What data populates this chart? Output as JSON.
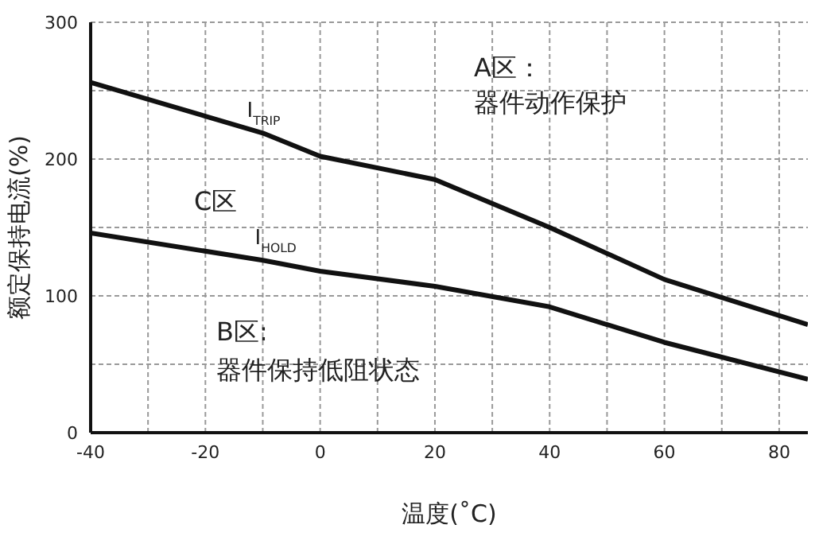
{
  "chart_data": {
    "type": "line",
    "xlabel": "温度(˚C)",
    "ylabel": "额定保持电流(%)",
    "x": [
      -40,
      -10,
      0,
      20,
      40,
      60,
      85
    ],
    "series": [
      {
        "name": "I$_{TRIP}$",
        "color": "#111111",
        "values": [
          256,
          219,
          202,
          185,
          150,
          112,
          79
        ]
      },
      {
        "name": "I$_{HOLD}$",
        "color": "#111111",
        "values": [
          146,
          126,
          118,
          107,
          92,
          66,
          39
        ]
      }
    ],
    "xlim": [
      -40,
      85
    ],
    "xticks": [
      -40,
      {
        "value": -30,
        "label": null
      },
      -20,
      {
        "value": -10,
        "label": null
      },
      0,
      {
        "value": 10,
        "label": null
      },
      20,
      {
        "value": 30,
        "label": null
      },
      40,
      {
        "value": 50,
        "label": null
      },
      60,
      {
        "value": 70,
        "label": null
      },
      80
    ],
    "ylim": [
      0,
      300
    ],
    "yticks": [
      0,
      {
        "value": 50,
        "label": null
      },
      100,
      {
        "value": 150,
        "label": null
      },
      200,
      {
        "value": 250,
        "label": null
      },
      300
    ],
    "grid": true,
    "marker": "none",
    "line_style": "solid",
    "annotations": [
      "A区：",
      "器件动作保护",
      "C区",
      "B区:",
      "器件保持低阻状态"
    ]
  }
}
